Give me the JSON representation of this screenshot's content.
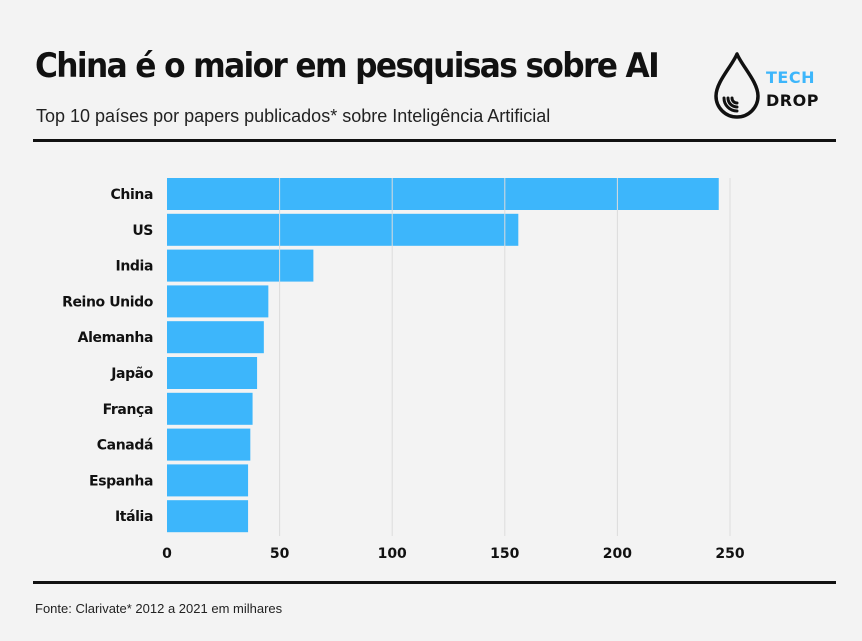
{
  "header": {
    "title": "China é o maior em pesquisas sobre AI",
    "subtitle": "Top 10 países por papers publicados* sobre Inteligência Artificial"
  },
  "logo": {
    "line1": "TECH",
    "line2": "DROP",
    "icon": "water-drop-icon"
  },
  "footer": {
    "source": "Fonte: Clarivate* 2012 a 2021 em milhares"
  },
  "colors": {
    "bar": "#3db6fb",
    "background": "#f3f3f3",
    "text": "#111111"
  },
  "chart_data": {
    "type": "bar",
    "orientation": "horizontal",
    "categories": [
      "China",
      "US",
      "India",
      "Reino Unido",
      "Alemanha",
      "Japão",
      "França",
      "Canadá",
      "Espanha",
      "Itália"
    ],
    "values": [
      245,
      156,
      65,
      45,
      43,
      40,
      38,
      37,
      36,
      36
    ],
    "xlim": [
      0,
      250
    ],
    "xticks": [
      0,
      50,
      100,
      150,
      200,
      250
    ],
    "grid": "vertical",
    "legend": "none"
  }
}
